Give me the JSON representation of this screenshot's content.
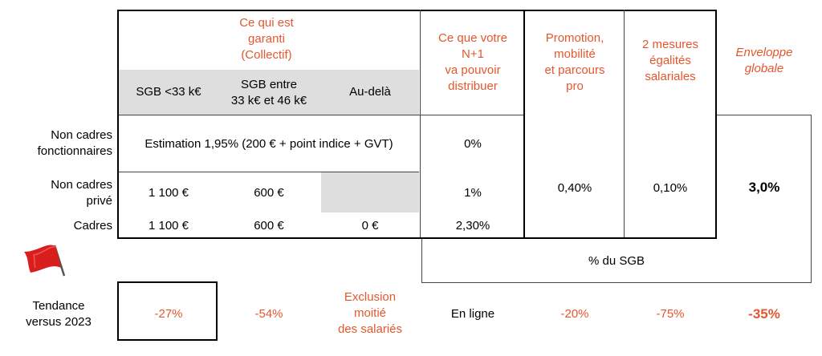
{
  "header": {
    "collectif_title": "Ce qui est\ngaranti\n(Collectif)",
    "sgb_low": "SGB <33 k€",
    "sgb_mid": "SGB entre\n33 k€ et 46 k€",
    "sgb_high": "Au-delà",
    "n1": "Ce que votre\nN+1\nva pouvoir\ndistribuer",
    "promotion": "Promotion,\nmobilité\net parcours\npro",
    "egalite": "2 mesures\négalités\nsalariales",
    "enveloppe": "Enveloppe\nglobale"
  },
  "rows": {
    "non_cadres_fonct": {
      "label": "Non cadres\nfonctionnaires",
      "estimation": "Estimation 1,95% (200 € + point indice + GVT)",
      "n1": "0%"
    },
    "non_cadres_prive": {
      "label": "Non cadres\nprivé",
      "low": "1 100 €",
      "mid": "600 €",
      "n1": "1%"
    },
    "cadres": {
      "label": "Cadres",
      "low": "1 100 €",
      "mid": "600 €",
      "high": "0 €",
      "n1": "2,30%"
    }
  },
  "merged": {
    "promotion": "0,40%",
    "egalite": "0,10%",
    "enveloppe": "3,0%"
  },
  "sgb_note": "% du SGB",
  "tendance": {
    "label": "Tendance\nversus 2023",
    "low": "-27%",
    "mid": "-54%",
    "high": "Exclusion\nmoitié\ndes salariés",
    "n1": "En ligne",
    "promotion": "-20%",
    "egalite": "-75%",
    "enveloppe": "-35%"
  },
  "colors": {
    "accent": "#e4572e",
    "gray_cell": "#dedede"
  },
  "icons": {
    "flag": "red-flag-icon"
  }
}
